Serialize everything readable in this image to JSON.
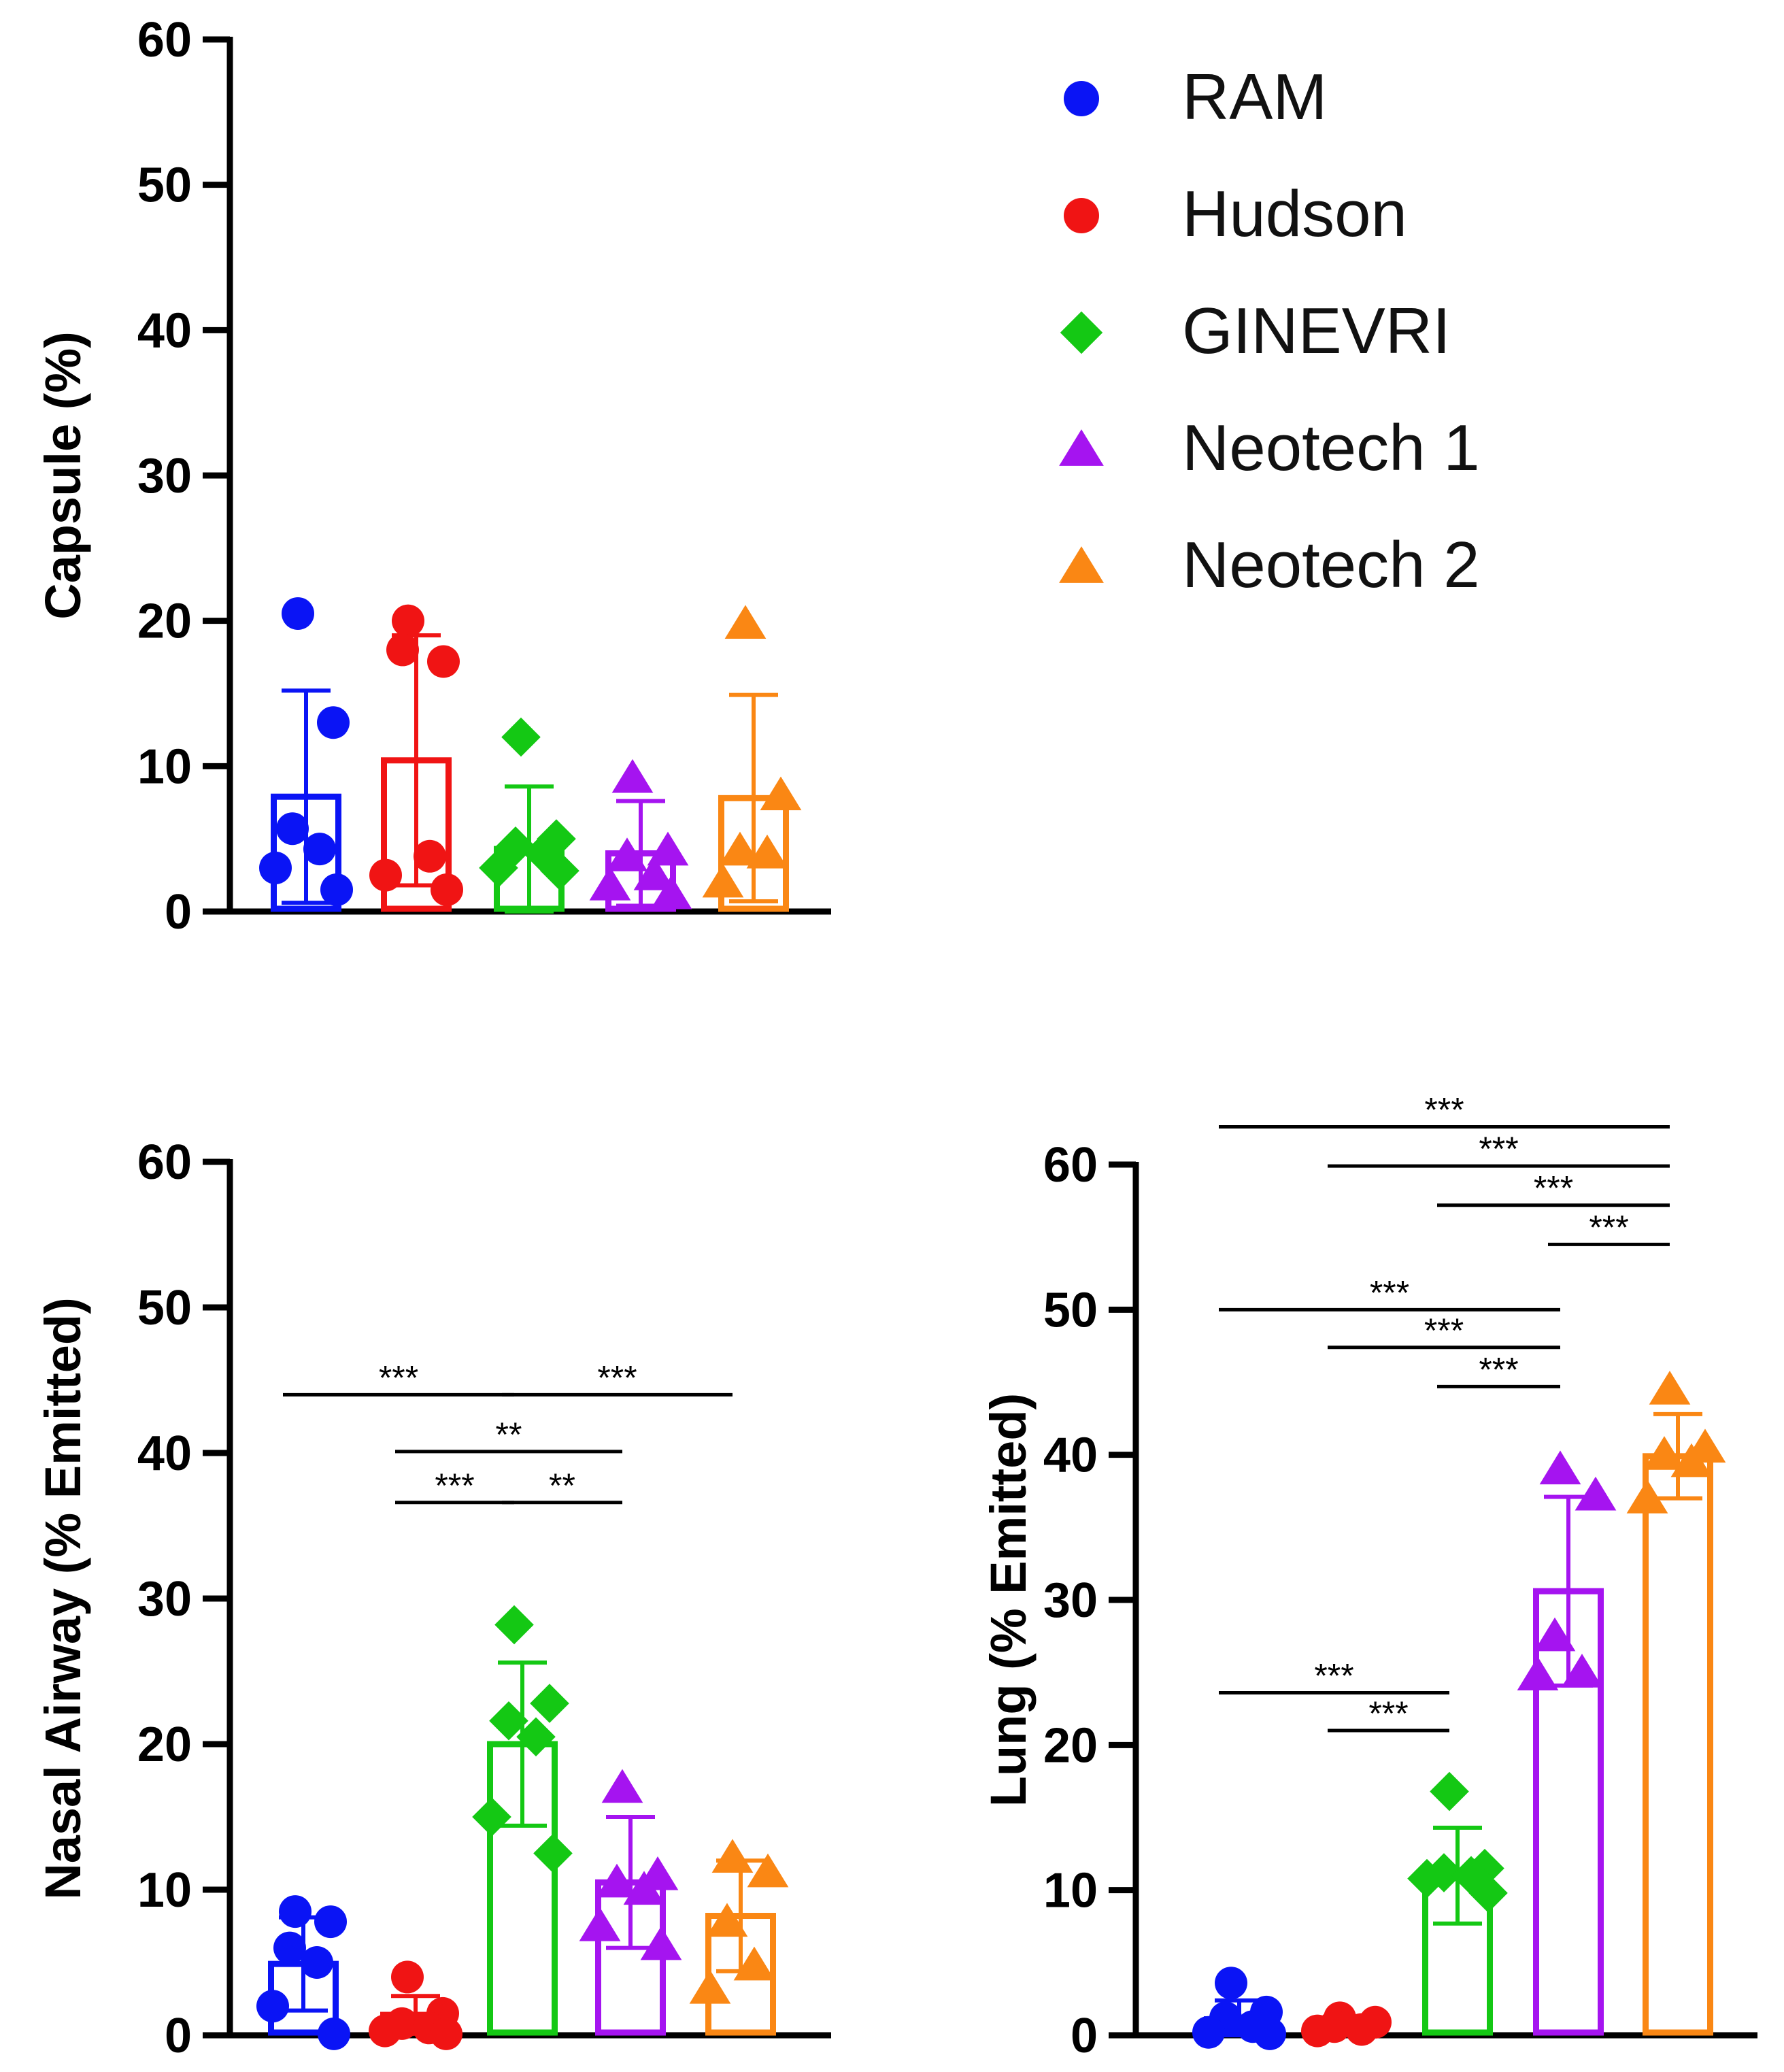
{
  "colors": {
    "RAM": "#0a14f5",
    "Hudson": "#f01414",
    "GINEVRI": "#14c814",
    "Neotech 1": "#a514f0",
    "Neotech 2": "#fa8714",
    "axis": "#000000"
  },
  "legend": [
    {
      "label": "RAM",
      "marker": "circle"
    },
    {
      "label": "Hudson",
      "marker": "circle"
    },
    {
      "label": "GINEVRI",
      "marker": "diamond"
    },
    {
      "label": "Neotech 1",
      "marker": "triangle"
    },
    {
      "label": "Neotech 2",
      "marker": "triangle"
    }
  ],
  "chart_data": [
    {
      "type": "bar",
      "title": "",
      "ylabel": "Capsule (%)",
      "xlabel": "",
      "ylim": [
        0,
        60
      ],
      "yticks": [
        0,
        10,
        20,
        30,
        40,
        50,
        60
      ],
      "categories": [
        "RAM",
        "Hudson",
        "GINEVRI",
        "Neotech 1",
        "Neotech 2"
      ],
      "means": [
        7.9,
        10.4,
        4.3,
        4.0,
        7.8
      ],
      "sd": [
        7.3,
        8.6,
        4.3,
        3.6,
        7.1
      ],
      "points": [
        [
          20.5,
          13.0,
          5.7,
          4.3,
          3.0,
          1.5
        ],
        [
          20.0,
          17.2,
          18.0,
          3.8,
          2.5,
          1.5
        ],
        [
          12.0,
          5.0,
          4.5,
          4.0,
          3.0,
          2.8
        ],
        [
          9.2,
          4.2,
          3.8,
          2.5,
          1.8,
          1.2
        ],
        [
          19.8,
          8.0,
          4.2,
          4.0,
          2.0
        ]
      ],
      "significance": []
    },
    {
      "type": "bar",
      "title": "",
      "ylabel": "Nasal Airway (% Emitted)",
      "xlabel": "",
      "ylim": [
        0,
        60
      ],
      "yticks": [
        0,
        10,
        20,
        30,
        40,
        50,
        60
      ],
      "categories": [
        "RAM",
        "Hudson",
        "GINEVRI",
        "Neotech 1",
        "Neotech 2"
      ],
      "means": [
        4.9,
        1.4,
        20.0,
        10.5,
        8.2
      ],
      "sd": [
        3.2,
        1.3,
        5.6,
        4.5,
        3.8
      ],
      "points": [
        [
          8.5,
          7.8,
          6.0,
          5.0,
          2.0,
          0.1
        ],
        [
          4.0,
          1.5,
          0.8,
          0.5,
          0.3,
          0.1
        ],
        [
          28.2,
          22.8,
          21.6,
          20.5,
          15.0,
          12.5
        ],
        [
          17.0,
          11.0,
          10.5,
          10.0,
          7.5,
          6.2
        ],
        [
          12.2,
          11.2,
          7.8,
          4.8,
          3.2
        ]
      ],
      "significance": [
        {
          "from": 0,
          "to": 2,
          "y": 44,
          "label": "***"
        },
        {
          "from": 2,
          "to": 4,
          "y": 44,
          "label": "***"
        },
        {
          "from": 1,
          "to": 3,
          "y": 40.1,
          "label": "**"
        },
        {
          "from": 1,
          "to": 2,
          "y": 36.6,
          "label": "***"
        },
        {
          "from": 2,
          "to": 3,
          "y": 36.6,
          "label": "**"
        }
      ]
    },
    {
      "type": "bar",
      "title": "",
      "ylabel": "Lung (% Emitted)",
      "xlabel": "",
      "ylim": [
        0,
        60
      ],
      "yticks": [
        0,
        10,
        20,
        30,
        40,
        50,
        60
      ],
      "categories": [
        "RAM",
        "Hudson",
        "GINEVRI",
        "Neotech 1",
        "Neotech 2"
      ],
      "means": [
        1.1,
        0.6,
        11.0,
        30.6,
        39.9
      ],
      "sd": [
        1.3,
        0.5,
        3.3,
        6.5,
        2.9
      ],
      "points": [
        [
          3.6,
          1.6,
          1.2,
          0.6,
          0.2,
          0.1
        ],
        [
          1.2,
          0.9,
          0.6,
          0.4,
          0.3
        ],
        [
          16.8,
          11.5,
          11.2,
          11.0,
          10.8,
          9.8
        ],
        [
          39.0,
          37.2,
          27.5,
          25.0,
          24.8
        ],
        [
          44.5,
          40.5,
          40.0,
          39.5,
          37.0
        ]
      ],
      "significance": [
        {
          "from": 0,
          "to": 4,
          "y": 62.6,
          "label": "***"
        },
        {
          "from": 1,
          "to": 4,
          "y": 59.9,
          "label": "***"
        },
        {
          "from": 2,
          "to": 4,
          "y": 57.2,
          "label": "***"
        },
        {
          "from": 3,
          "to": 4,
          "y": 54.5,
          "label": "***"
        },
        {
          "from": 0,
          "to": 3,
          "y": 50.0,
          "label": "***"
        },
        {
          "from": 1,
          "to": 3,
          "y": 47.4,
          "label": "***"
        },
        {
          "from": 2,
          "to": 3,
          "y": 44.7,
          "label": "***"
        },
        {
          "from": 0,
          "to": 2,
          "y": 23.6,
          "label": "***"
        },
        {
          "from": 1,
          "to": 2,
          "y": 21.0,
          "label": "***"
        }
      ]
    }
  ]
}
